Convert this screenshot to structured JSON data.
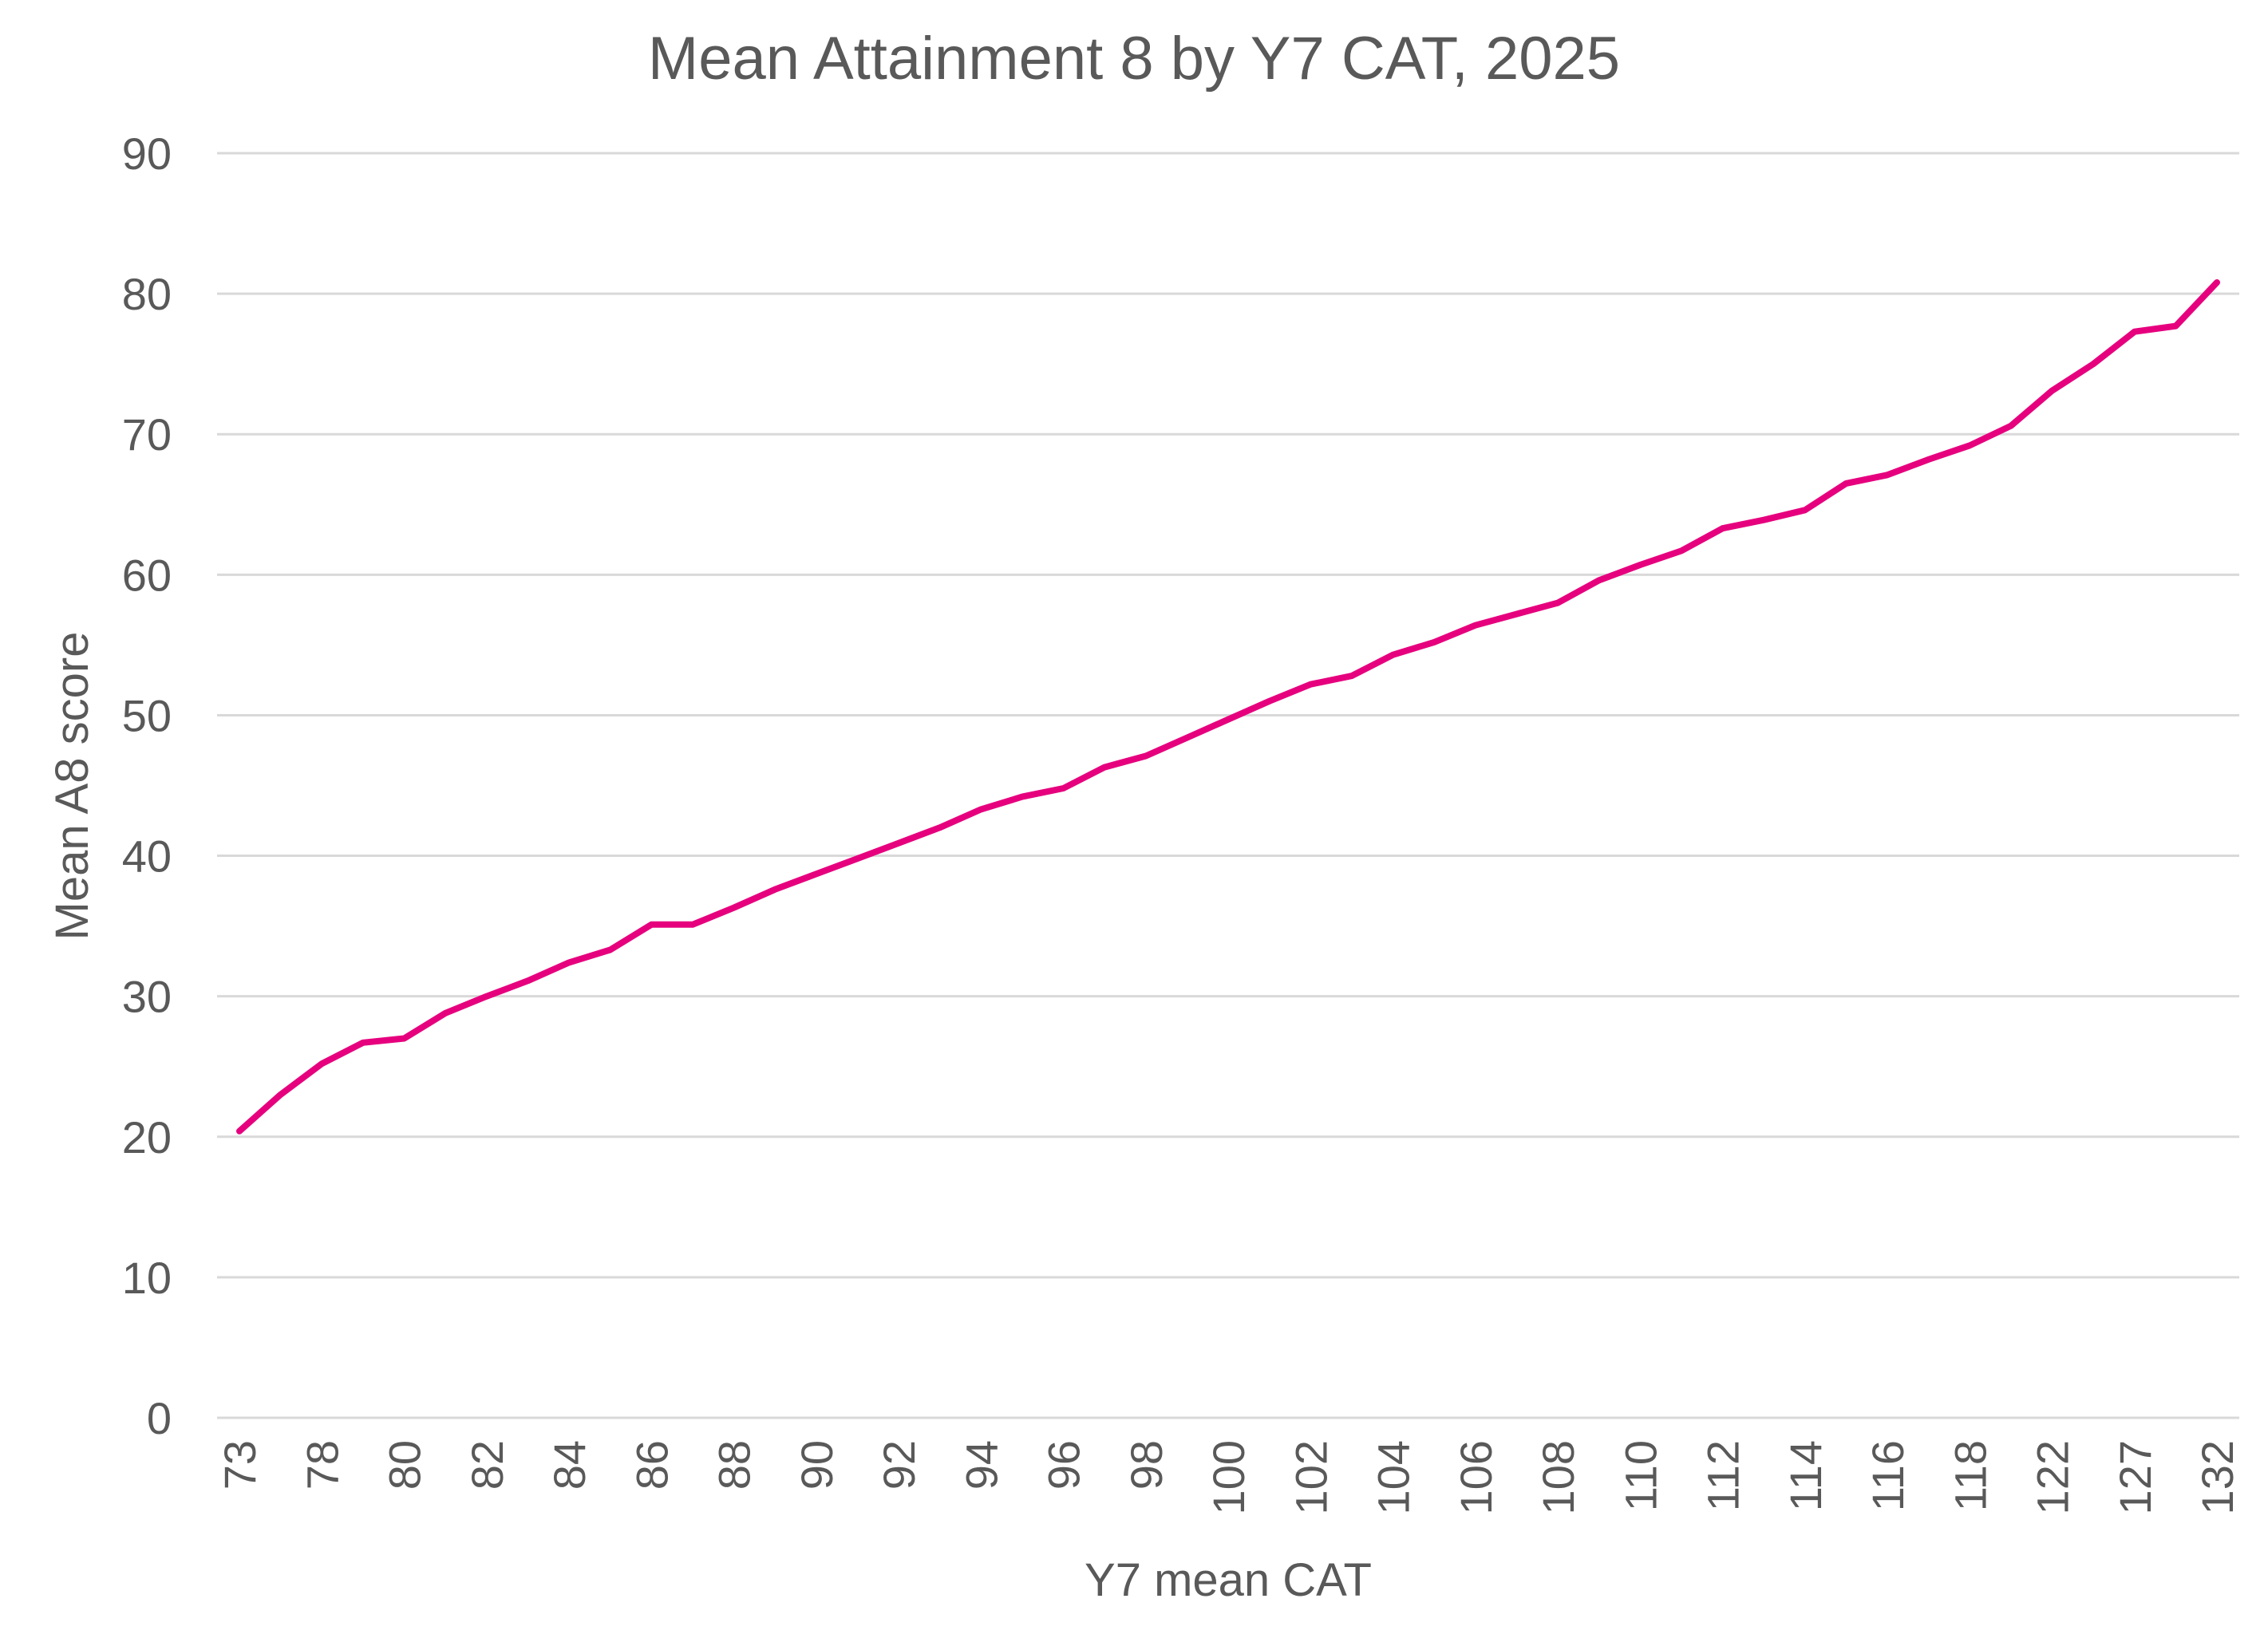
{
  "chart_data": {
    "type": "line",
    "title": "Mean Attainment 8 by Y7 CAT, 2025",
    "xlabel": "Y7 mean CAT",
    "ylabel": "Mean A8 score",
    "ylim": [
      0,
      90
    ],
    "yticks": [
      0,
      10,
      20,
      30,
      40,
      50,
      60,
      70,
      80,
      90
    ],
    "grid": "horizontal",
    "line_color": "#e6007e",
    "x_tick_labels": [
      "73",
      "78",
      "80",
      "82",
      "84",
      "86",
      "88",
      "90",
      "92",
      "94",
      "96",
      "98",
      "100",
      "102",
      "104",
      "106",
      "108",
      "110",
      "112",
      "114",
      "116",
      "118",
      "122",
      "127",
      "132"
    ],
    "x": [
      73,
      76,
      78,
      79,
      80,
      81,
      82,
      83,
      84,
      85,
      86,
      87,
      88,
      89,
      90,
      91,
      92,
      93,
      94,
      95,
      96,
      97,
      98,
      99,
      100,
      101,
      102,
      103,
      104,
      105,
      106,
      107,
      108,
      109,
      110,
      111,
      112,
      113,
      114,
      115,
      116,
      117,
      118,
      120,
      122,
      125,
      127,
      130,
      132
    ],
    "series": [
      {
        "values": [
          20.4,
          23.0,
          25.2,
          26.7,
          27.0,
          28.8,
          30.0,
          31.1,
          32.4,
          33.3,
          35.1,
          35.1,
          36.3,
          37.6,
          38.7,
          39.8,
          40.9,
          42.0,
          43.3,
          44.2,
          44.8,
          46.3,
          47.1,
          48.4,
          49.7,
          51.0,
          52.2,
          52.8,
          54.3,
          55.2,
          56.4,
          57.2,
          58.0,
          59.6,
          60.7,
          61.7,
          63.3,
          63.9,
          64.6,
          66.5,
          67.1,
          68.2,
          69.2,
          70.6,
          73.1,
          75.0,
          77.3,
          77.7,
          80.8
        ]
      }
    ]
  }
}
